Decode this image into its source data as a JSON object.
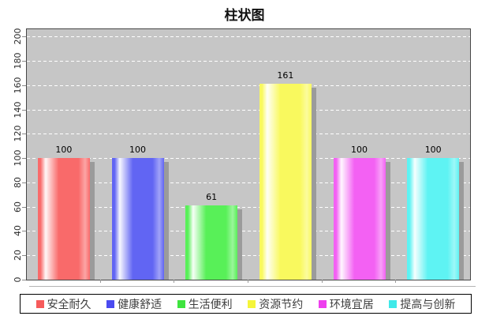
{
  "title": "柱状图",
  "chart_data": {
    "type": "bar",
    "title": "柱状图",
    "categories": [
      "安全耐久",
      "健康舒适",
      "生活便利",
      "资源节约",
      "环境宜居",
      "提高与创新"
    ],
    "values": [
      100,
      100,
      61,
      161,
      100,
      100
    ],
    "value_labels": [
      "100",
      "100",
      "61",
      "161",
      "100",
      "100"
    ],
    "bar_colors": [
      "#f96a6a",
      "#6165f3",
      "#58f058",
      "#f9f95e",
      "#f361f3",
      "#5ef3f3"
    ],
    "legend_swatch_colors": [
      "#f65b5b",
      "#4b4bf0",
      "#3fe43f",
      "#f5f53a",
      "#ee3fee",
      "#3fe9e9"
    ],
    "xlabel": "",
    "ylabel": "",
    "ylim": [
      0,
      206
    ],
    "yticks": [
      0,
      20,
      40,
      60,
      80,
      100,
      120,
      140,
      160,
      180,
      200
    ],
    "grid": "horizontal white dashed",
    "legend_position": "bottom",
    "plot_background": "#c6c6c6",
    "shadow_color": "#9b9b9b"
  }
}
